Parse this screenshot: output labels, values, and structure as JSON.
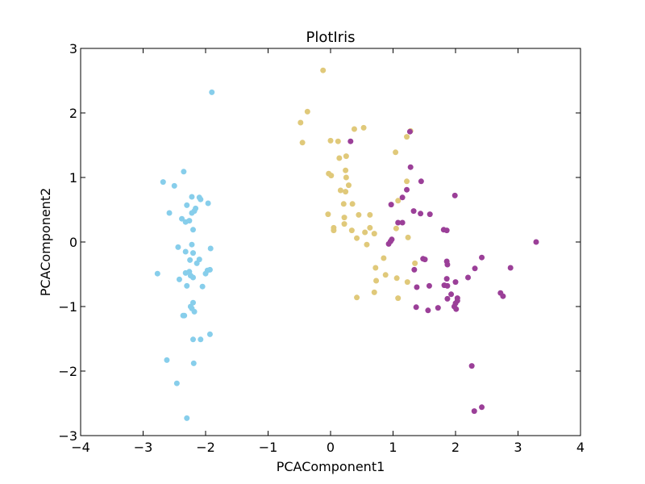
{
  "chart_data": {
    "type": "scatter",
    "title": "PlotIris",
    "xlabel": "PCAComponent1",
    "ylabel": "PCAComponent2",
    "xlim": [
      -4,
      4
    ],
    "ylim": [
      -3,
      3
    ],
    "xticks": [
      -4,
      -3,
      -2,
      -1,
      0,
      1,
      2,
      3,
      4
    ],
    "yticks": [
      -3,
      -2,
      -1,
      0,
      1,
      2,
      3
    ],
    "xtick_labels": [
      "−4",
      "−3",
      "−2",
      "−1",
      "0",
      "1",
      "2",
      "3",
      "4"
    ],
    "ytick_labels": [
      "−3",
      "−2",
      "−1",
      "0",
      "1",
      "2",
      "3"
    ],
    "grid": false,
    "legend": "none",
    "series": [
      {
        "color": "#87ceeb",
        "points": [
          [
            -1.9,
            2.32
          ],
          [
            -2.68,
            0.93
          ],
          [
            -2.5,
            0.87
          ],
          [
            -2.35,
            1.09
          ],
          [
            -2.22,
            0.7
          ],
          [
            -2.1,
            0.69
          ],
          [
            -2.08,
            0.66
          ],
          [
            -1.96,
            0.6
          ],
          [
            -2.3,
            0.57
          ],
          [
            -2.16,
            0.52
          ],
          [
            -2.58,
            0.45
          ],
          [
            -2.22,
            0.45
          ],
          [
            -2.18,
            0.48
          ],
          [
            -2.38,
            0.36
          ],
          [
            -2.32,
            0.31
          ],
          [
            -2.26,
            0.33
          ],
          [
            -2.2,
            0.19
          ],
          [
            -1.92,
            -0.1
          ],
          [
            -2.44,
            -0.08
          ],
          [
            -2.22,
            -0.04
          ],
          [
            -2.32,
            -0.15
          ],
          [
            -2.2,
            -0.17
          ],
          [
            -2.1,
            -0.27
          ],
          [
            -2.25,
            -0.28
          ],
          [
            -2.14,
            -0.33
          ],
          [
            -1.97,
            -0.44
          ],
          [
            -1.93,
            -0.43
          ],
          [
            -2.26,
            -0.46
          ],
          [
            -2.32,
            -0.48
          ],
          [
            -2.0,
            -0.49
          ],
          [
            -2.77,
            -0.49
          ],
          [
            -2.24,
            -0.52
          ],
          [
            -2.2,
            -0.55
          ],
          [
            -2.42,
            -0.58
          ],
          [
            -2.05,
            -0.69
          ],
          [
            -2.3,
            -0.68
          ],
          [
            -2.2,
            -0.94
          ],
          [
            -2.22,
            -1.03
          ],
          [
            -2.24,
            -1.0
          ],
          [
            -2.18,
            -1.08
          ],
          [
            -2.36,
            -1.14
          ],
          [
            -2.34,
            -1.14
          ],
          [
            -1.93,
            -1.43
          ],
          [
            -2.2,
            -1.51
          ],
          [
            -2.08,
            -1.51
          ],
          [
            -2.62,
            -1.83
          ],
          [
            -2.19,
            -1.88
          ],
          [
            -2.46,
            -2.19
          ],
          [
            -2.3,
            -2.73
          ]
        ]
      },
      {
        "color": "#e0c97a",
        "points": [
          [
            -0.12,
            2.66
          ],
          [
            -0.37,
            2.02
          ],
          [
            -0.48,
            1.85
          ],
          [
            -0.45,
            1.54
          ],
          [
            0.38,
            1.75
          ],
          [
            0.53,
            1.77
          ],
          [
            0.0,
            1.57
          ],
          [
            0.12,
            1.56
          ],
          [
            1.04,
            1.39
          ],
          [
            1.22,
            1.63
          ],
          [
            1.28,
            1.72
          ],
          [
            0.14,
            1.3
          ],
          [
            0.25,
            1.33
          ],
          [
            0.24,
            1.11
          ],
          [
            -0.03,
            1.06
          ],
          [
            0.01,
            1.03
          ],
          [
            0.25,
            1.0
          ],
          [
            0.16,
            0.8
          ],
          [
            0.24,
            0.78
          ],
          [
            0.29,
            0.88
          ],
          [
            1.22,
            0.94
          ],
          [
            1.08,
            0.64
          ],
          [
            0.35,
            0.59
          ],
          [
            0.21,
            0.59
          ],
          [
            -0.04,
            0.43
          ],
          [
            0.22,
            0.38
          ],
          [
            0.45,
            0.42
          ],
          [
            0.63,
            0.42
          ],
          [
            0.22,
            0.28
          ],
          [
            0.05,
            0.22
          ],
          [
            0.05,
            0.18
          ],
          [
            0.34,
            0.18
          ],
          [
            0.63,
            0.22
          ],
          [
            0.55,
            0.15
          ],
          [
            0.7,
            0.13
          ],
          [
            1.05,
            0.21
          ],
          [
            0.42,
            0.06
          ],
          [
            0.58,
            -0.04
          ],
          [
            1.24,
            0.07
          ],
          [
            0.85,
            -0.25
          ],
          [
            0.72,
            -0.4
          ],
          [
            1.35,
            -0.33
          ],
          [
            0.73,
            -0.6
          ],
          [
            0.88,
            -0.51
          ],
          [
            1.06,
            -0.56
          ],
          [
            1.23,
            -0.62
          ],
          [
            0.7,
            -0.78
          ],
          [
            0.42,
            -0.86
          ],
          [
            1.08,
            -0.87
          ]
        ]
      },
      {
        "color": "#9b3f98",
        "points": [
          [
            1.27,
            1.71
          ],
          [
            0.32,
            1.56
          ],
          [
            1.28,
            1.16
          ],
          [
            1.45,
            0.94
          ],
          [
            1.99,
            0.72
          ],
          [
            1.22,
            0.81
          ],
          [
            1.15,
            0.69
          ],
          [
            0.97,
            0.58
          ],
          [
            1.33,
            0.48
          ],
          [
            1.44,
            0.44
          ],
          [
            1.59,
            0.43
          ],
          [
            1.08,
            0.3
          ],
          [
            1.15,
            0.3
          ],
          [
            1.81,
            0.19
          ],
          [
            1.86,
            0.18
          ],
          [
            0.96,
            0.01
          ],
          [
            0.93,
            -0.03
          ],
          [
            0.98,
            0.04
          ],
          [
            1.48,
            -0.26
          ],
          [
            1.51,
            -0.27
          ],
          [
            1.34,
            -0.43
          ],
          [
            1.86,
            -0.3
          ],
          [
            1.87,
            -0.35
          ],
          [
            2.42,
            -0.24
          ],
          [
            2.31,
            -0.41
          ],
          [
            2.88,
            -0.4
          ],
          [
            1.86,
            -0.57
          ],
          [
            2.2,
            -0.55
          ],
          [
            1.82,
            -0.67
          ],
          [
            1.87,
            -0.68
          ],
          [
            2.0,
            -0.62
          ],
          [
            1.38,
            -0.7
          ],
          [
            1.58,
            -0.68
          ],
          [
            2.72,
            -0.79
          ],
          [
            2.76,
            -0.84
          ],
          [
            2.03,
            -0.87
          ],
          [
            2.03,
            -0.91
          ],
          [
            1.87,
            -0.88
          ],
          [
            1.98,
            -1.0
          ],
          [
            2.01,
            -1.04
          ],
          [
            1.37,
            -1.01
          ],
          [
            1.56,
            -1.06
          ],
          [
            1.72,
            -1.02
          ],
          [
            3.29,
            0.0
          ],
          [
            2.26,
            -1.92
          ],
          [
            2.42,
            -2.56
          ],
          [
            2.3,
            -2.62
          ],
          [
            1.93,
            -0.81
          ],
          [
            2.0,
            -0.95
          ]
        ]
      }
    ]
  }
}
